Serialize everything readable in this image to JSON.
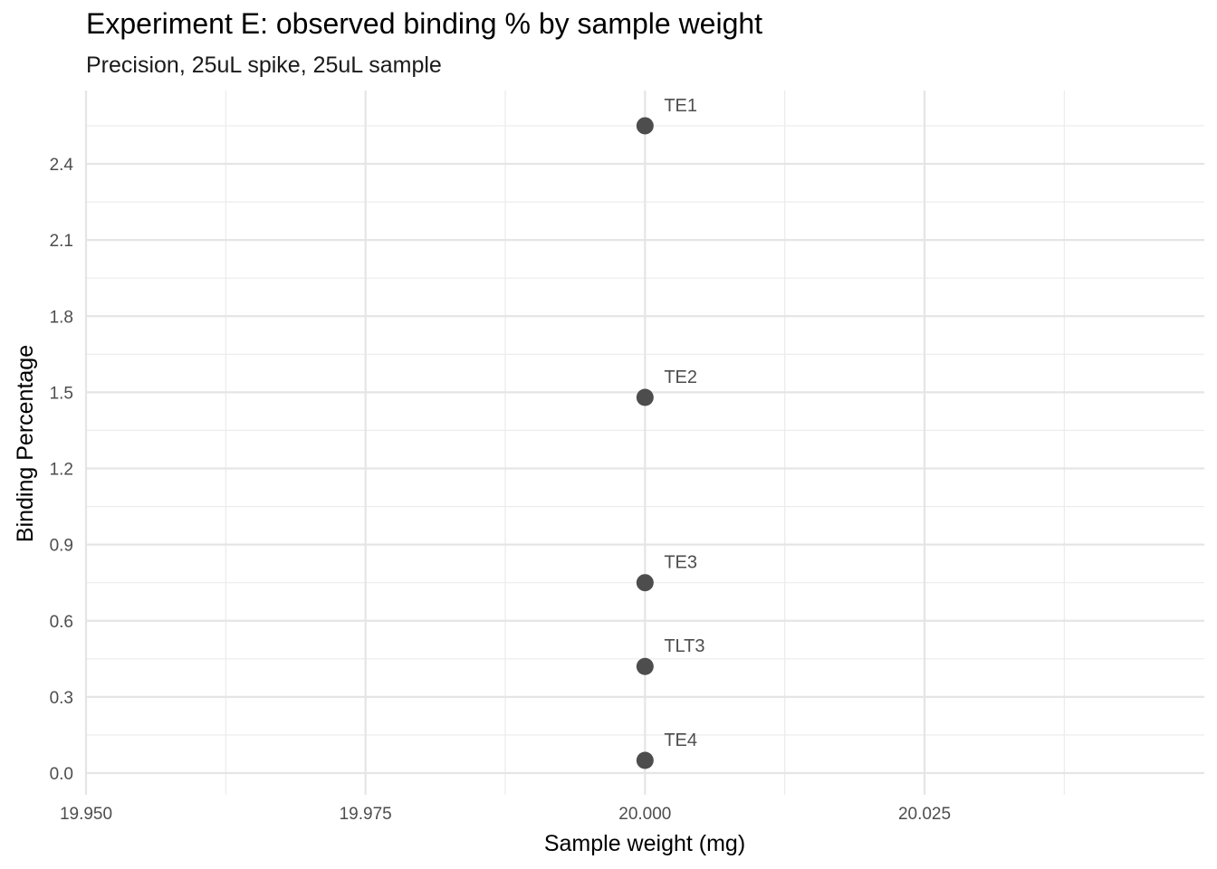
{
  "chart_data": {
    "type": "scatter",
    "title": "Experiment E: observed binding % by sample weight",
    "subtitle": "Precision, 25uL spike, 25uL sample",
    "xlabel": "Sample weight (mg)",
    "ylabel": "Binding Percentage",
    "xlim": [
      19.95,
      20.05
    ],
    "ylim": [
      0.0,
      2.55
    ],
    "x_ticks": [
      "19.950",
      "19.975",
      "20.000",
      "20.025"
    ],
    "x_tick_values": [
      19.95,
      19.975,
      20.0,
      20.025
    ],
    "y_ticks": [
      "0.0",
      "0.3",
      "0.6",
      "0.9",
      "1.2",
      "1.5",
      "1.8",
      "2.1",
      "2.4"
    ],
    "y_tick_values": [
      0.0,
      0.3,
      0.6,
      0.9,
      1.2,
      1.5,
      1.8,
      2.1,
      2.4
    ],
    "grid": true,
    "point_color": "#4d4d4d",
    "points": [
      {
        "label": "TE1",
        "x": 20.0,
        "y": 2.55
      },
      {
        "label": "TE2",
        "x": 20.0,
        "y": 1.48
      },
      {
        "label": "TE3",
        "x": 20.0,
        "y": 0.75
      },
      {
        "label": "TLT3",
        "x": 20.0,
        "y": 0.42
      },
      {
        "label": "TE4",
        "x": 20.0,
        "y": 0.05
      }
    ]
  }
}
